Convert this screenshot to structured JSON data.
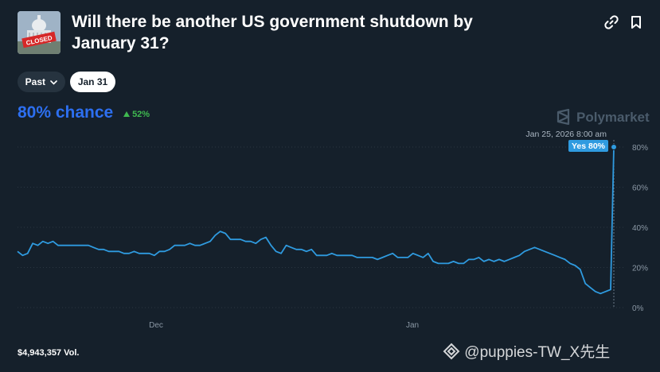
{
  "market": {
    "title_line1": "Will there be another US government shutdown by",
    "title_line2": "January 31?",
    "thumbnail_sign": "CLOSED"
  },
  "filters": {
    "past_label": "Past",
    "date_label": "Jan 31"
  },
  "odds": {
    "chance_label": "80% chance",
    "change_label": "52%"
  },
  "brand": {
    "name": "Polymarket"
  },
  "tooltip": {
    "timestamp": "Jan 25, 2026 8:00 am",
    "value_label": "Yes 80%"
  },
  "footer": {
    "volume": "$4,943,357 Vol.",
    "watermark": "@puppies-TW_X先生"
  },
  "colors": {
    "background": "#15202b",
    "line": "#2f9be0",
    "chance": "#2d6ff0",
    "up": "#3fb950"
  },
  "chart_data": {
    "type": "line",
    "x_ticks": [
      "Dec",
      "Jan"
    ],
    "y_ticks": [
      "80%",
      "60%",
      "40%",
      "20%",
      "0%"
    ],
    "ylim": [
      0,
      80
    ],
    "series": [
      {
        "values": [
          28,
          26,
          27,
          32,
          31,
          33,
          32,
          33,
          31,
          31,
          31,
          31,
          31,
          31,
          31,
          30,
          29,
          29,
          28,
          28,
          28,
          27,
          27,
          28,
          27,
          27,
          27,
          26,
          28,
          28,
          29,
          31,
          31,
          31,
          32,
          31,
          31,
          32,
          33,
          36,
          38,
          37,
          34,
          34,
          34,
          33,
          33,
          32,
          34,
          35,
          31,
          28,
          27,
          31,
          30,
          29,
          29,
          28,
          29,
          26,
          26,
          26,
          27,
          26,
          26,
          26,
          26,
          25,
          25,
          25,
          25,
          24,
          25,
          26,
          27,
          25,
          25,
          25,
          27,
          26,
          25,
          27,
          23,
          22,
          22,
          22,
          23,
          22,
          22,
          24,
          24,
          25,
          23,
          24,
          23,
          24,
          23,
          24,
          25,
          26,
          28,
          29,
          30,
          29,
          28,
          27,
          26,
          25,
          24,
          22,
          21,
          19,
          12,
          10,
          8,
          7,
          8,
          9,
          80
        ]
      }
    ]
  }
}
